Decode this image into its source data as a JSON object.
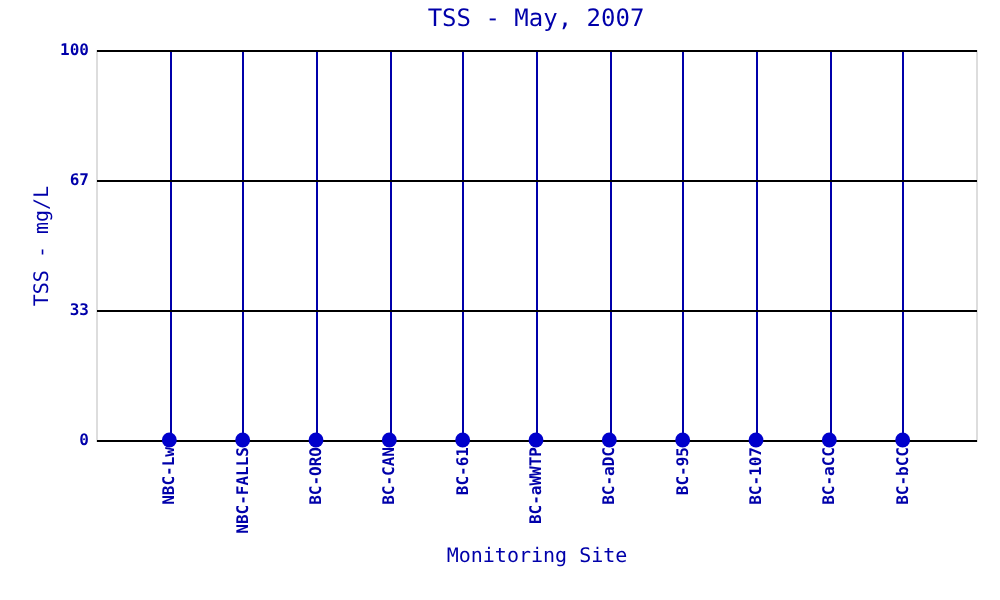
{
  "chart_data": {
    "type": "scatter",
    "title": "TSS - May, 2007",
    "xlabel": "Monitoring Site",
    "ylabel": "TSS - mg/L",
    "categories": [
      "NBC-Lw",
      "NBC-FALLS",
      "BC-ORO",
      "BC-CAN",
      "BC-61",
      "BC-aWWTP",
      "BC-aDC",
      "BC-95",
      "BC-107",
      "BC-aCC",
      "BC-bCC"
    ],
    "series": [
      {
        "color": "#0000cc",
        "values": [
          0,
          0,
          0,
          0,
          0,
          0,
          0,
          0,
          0,
          0,
          0
        ]
      }
    ],
    "ylim": [
      0,
      100
    ],
    "yticks": [
      0,
      {
        "value": 33.3,
        "label": "33"
      },
      {
        "value": 66.7,
        "label": "67"
      },
      100
    ],
    "grid": true,
    "marker": "circle",
    "legend": false
  }
}
